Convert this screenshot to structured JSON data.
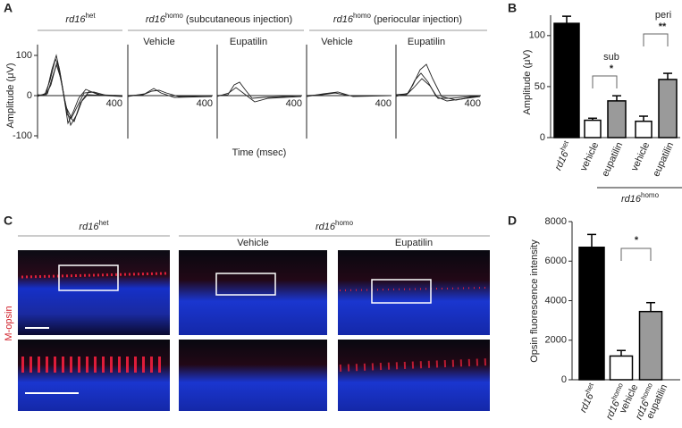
{
  "panel_labels": [
    "A",
    "B",
    "C",
    "D"
  ],
  "panel_a": {
    "headers": [
      {
        "text": "rd16",
        "sup": "het"
      },
      {
        "text": "rd16",
        "sup": "homo",
        "note": " (subcutaneous injection)"
      },
      {
        "text": "rd16",
        "sup": "homo",
        "note": " (periocular injection)"
      }
    ],
    "conditions": [
      "Vehicle",
      "Eupatilin",
      "Vehicle",
      "Eupatilin"
    ],
    "ylabel": "Amplitude (μV)",
    "xlabel": "Time (msec)",
    "ylim": [
      -107,
      127
    ],
    "yticks": [
      100,
      0,
      -100
    ],
    "xtick": 400
  },
  "panel_c": {
    "headers": [
      {
        "text": "rd16",
        "sup": "het"
      },
      {
        "text": "rd16",
        "sup": "homo"
      }
    ],
    "conditions": [
      "Vehicle",
      "Eupatilin"
    ],
    "stain": "M-opsin"
  },
  "chart_data": [
    {
      "type": "bar",
      "ylabel": "Amplitude (μV)",
      "categories": [
        {
          "text": "rd16",
          "sup": "het"
        },
        "vehicle",
        "eupatilin",
        "vehicle",
        "eupatilin"
      ],
      "values": [
        112,
        17,
        36,
        16,
        57
      ],
      "errors": [
        7,
        2,
        5,
        5,
        6
      ],
      "colors": [
        "#000000",
        "#ffffff",
        "#9a9a9a",
        "#ffffff",
        "#9a9a9a"
      ],
      "ylim": [
        0,
        120
      ],
      "yticks": [
        0,
        50,
        100
      ],
      "group_label": {
        "text": "rd16",
        "sup": "homo"
      },
      "annotations": [
        "sub",
        "*",
        "peri",
        "**"
      ]
    },
    {
      "type": "bar",
      "ylabel": "Opsin fluorescence intensity",
      "categories": [
        {
          "text": "rd16",
          "sup": "het"
        },
        {
          "text": "rd16",
          "sup": "homo",
          "line2": "vehicle"
        },
        {
          "text": "rd16",
          "sup": "homo",
          "line2": "eupatilin"
        }
      ],
      "values": [
        6700,
        1200,
        3450
      ],
      "errors": [
        650,
        280,
        450
      ],
      "colors": [
        "#000000",
        "#ffffff",
        "#9a9a9a"
      ],
      "ylim": [
        0,
        8000
      ],
      "yticks": [
        0,
        2000,
        4000,
        6000,
        8000
      ],
      "annotations": [
        "*"
      ]
    }
  ]
}
